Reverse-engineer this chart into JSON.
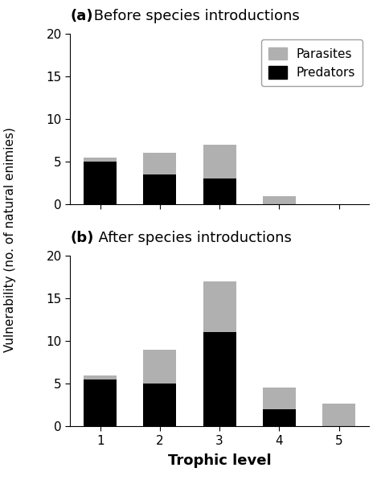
{
  "categories": [
    1,
    2,
    3,
    4,
    5
  ],
  "panel_a": {
    "label": "(a)",
    "title_rest": " Before species introductions",
    "predators": [
      5.0,
      3.5,
      3.0,
      0.0,
      0.0
    ],
    "parasites": [
      0.5,
      2.5,
      4.0,
      1.0,
      0.0
    ]
  },
  "panel_b": {
    "label": "(b)",
    "title_rest": "  After species introductions",
    "predators": [
      5.5,
      5.0,
      11.0,
      2.0,
      0.0
    ],
    "parasites": [
      0.5,
      4.0,
      6.0,
      2.5,
      2.7
    ]
  },
  "ylabel": "Vulnerability (no. of natural enimies)",
  "xlabel": "Trophic level",
  "ylim": [
    0,
    20
  ],
  "yticks": [
    0,
    5,
    10,
    15,
    20
  ],
  "predator_color": "#000000",
  "parasite_color": "#b0b0b0",
  "bar_width": 0.55,
  "background_color": "#ffffff",
  "title_fontsize": 13,
  "tick_fontsize": 11,
  "ylabel_fontsize": 11,
  "xlabel_fontsize": 13
}
